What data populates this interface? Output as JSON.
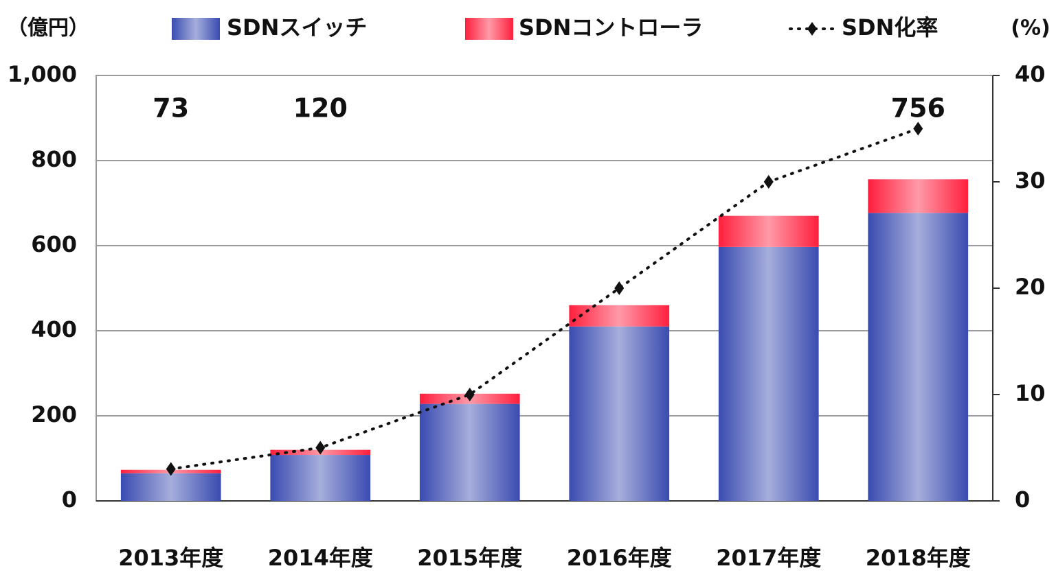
{
  "chart_data": {
    "type": "stacked-bar-line",
    "y_label": "（億円）",
    "y2_label": "(%)",
    "categories": [
      "2013年度",
      "2014年度",
      "2015年度",
      "2016年度",
      "2017年度",
      "2018年度"
    ],
    "series": [
      {
        "name": "SDNスイッチ",
        "color": "#3a4bb0",
        "values": [
          65,
          108,
          228,
          410,
          597,
          677
        ]
      },
      {
        "name": "SDNコントローラ",
        "color": "#ff1f3d",
        "values": [
          8,
          12,
          24,
          50,
          73,
          79
        ]
      },
      {
        "name": "SDN化率",
        "color": "#111111",
        "axis": "y2",
        "values": [
          3,
          5,
          10,
          20,
          30,
          35
        ]
      }
    ],
    "annotations": [
      {
        "text": "73",
        "category": "2013年度"
      },
      {
        "text": "120",
        "category": "2014年度"
      },
      {
        "text": "756",
        "category": "2018年度"
      }
    ],
    "ylim": [
      0,
      1000
    ],
    "yticks": [
      0,
      200,
      400,
      600,
      800,
      {
        "value": 1000,
        "label": "1,000"
      }
    ],
    "y2lim": [
      0,
      40
    ],
    "y2ticks": [
      0,
      10,
      20,
      30,
      40
    ],
    "grid": true
  }
}
